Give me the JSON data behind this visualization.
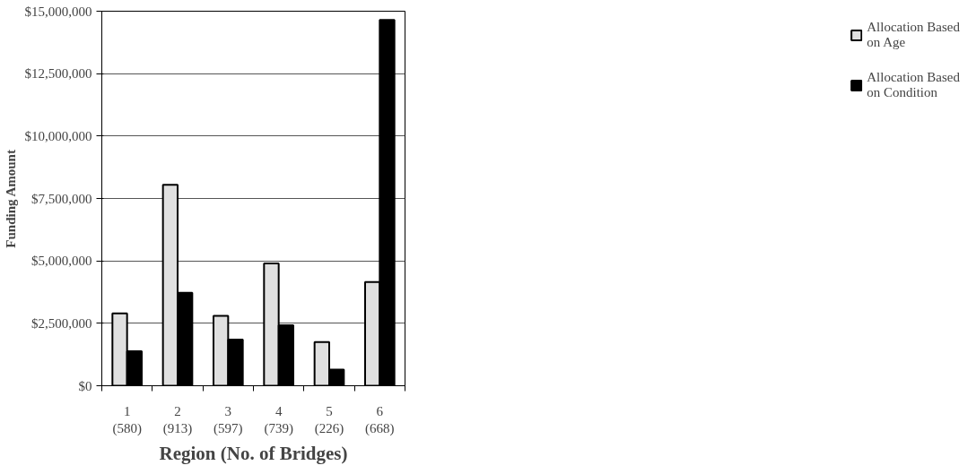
{
  "chart_data": {
    "type": "bar",
    "xlabel": "Region (No. of Bridges)",
    "ylabel": "Funding Amount",
    "categories": [
      "1\n(580)",
      "2\n(913)",
      "3\n(597)",
      "4\n(739)",
      "5\n(226)",
      "6\n(668)"
    ],
    "series": [
      {
        "name": "Allocation Based\non Age",
        "color": "#e0e0e0",
        "values": [
          2900000,
          8050000,
          2800000,
          4900000,
          1750000,
          4150000
        ]
      },
      {
        "name": "Allocation Based\non Condition",
        "color": "#000000",
        "values": [
          1380000,
          3720000,
          1850000,
          2420000,
          650000,
          14650000
        ]
      }
    ],
    "ylim": [
      0,
      15000000
    ],
    "yticks": [
      {
        "value": 0,
        "label": "$0"
      },
      {
        "value": 2500000,
        "label": "$2,500,000"
      },
      {
        "value": 5000000,
        "label": "$5,000,000"
      },
      {
        "value": 7500000,
        "label": "$7,500,000"
      },
      {
        "value": 10000000,
        "label": "$10,000,000"
      },
      {
        "value": 12500000,
        "label": "$12,500,000"
      },
      {
        "value": 15000000,
        "label": "$15,000,000"
      }
    ],
    "grid": "y",
    "legend": "right"
  }
}
